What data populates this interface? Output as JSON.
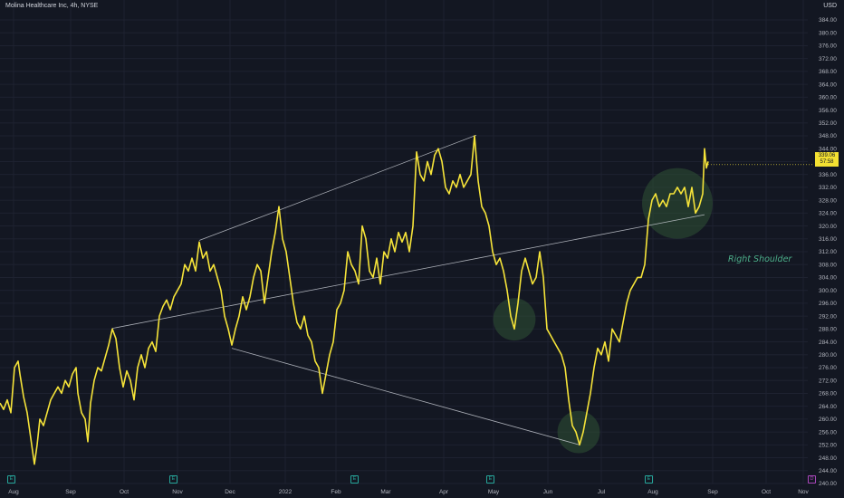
{
  "header": {
    "title": "Molina Healthcare Inc, 4h, NYSE",
    "currency": "USD"
  },
  "price_label": {
    "price": "339.06",
    "countdown": "57:58"
  },
  "annotation": "Right Shoulder",
  "colors": {
    "background": "#131722",
    "price_line": "#f5e339",
    "trendline": "#d1d4dc",
    "highlight_circle": "#2f5234",
    "annotation_text": "#4caf8a"
  },
  "event_markers": [
    {
      "label": "E",
      "x_date": "2021-07-28",
      "color": "#26a69a"
    },
    {
      "label": "E",
      "x_date": "2021-10-27",
      "color": "#26a69a"
    },
    {
      "label": "E",
      "x_date": "2022-02-08",
      "color": "#26a69a"
    },
    {
      "label": "E",
      "x_date": "2022-04-27",
      "color": "#26a69a"
    },
    {
      "label": "E",
      "x_date": "2022-07-27",
      "color": "#26a69a"
    },
    {
      "label": "D",
      "x_date": "2022-10-31",
      "color": "#ab47bc"
    }
  ],
  "chart_data": {
    "type": "line",
    "title": "Molina Healthcare Inc, 4h, NYSE",
    "y_unit": "USD",
    "ylim": [
      240,
      384
    ],
    "y_ticks": [
      "384.00",
      "380.00",
      "376.00",
      "372.00",
      "368.00",
      "364.00",
      "360.00",
      "356.00",
      "352.00",
      "348.00",
      "344.00",
      "340.00",
      "336.00",
      "332.00",
      "328.00",
      "324.00",
      "320.00",
      "316.00",
      "312.00",
      "308.00",
      "304.00",
      "300.00",
      "296.00",
      "292.00",
      "288.00",
      "284.00",
      "280.00",
      "276.00",
      "272.00",
      "268.00",
      "264.00",
      "260.00",
      "256.00",
      "252.00",
      "248.00",
      "244.00",
      "240.00"
    ],
    "x_ticks": [
      "Aug",
      "Sep",
      "Oct",
      "Nov",
      "Dec",
      "2022",
      "Feb",
      "Mar",
      "Apr",
      "May",
      "Jun",
      "Jul",
      "Aug",
      "Sep",
      "Oct",
      "Nov"
    ],
    "grid": true,
    "series": [
      {
        "values": [
          [
            0,
            265
          ],
          [
            4,
            263
          ],
          [
            8,
            266
          ],
          [
            12,
            262
          ],
          [
            16,
            276
          ],
          [
            20,
            278
          ],
          [
            22,
            274
          ],
          [
            26,
            267
          ],
          [
            30,
            262
          ],
          [
            34,
            254
          ],
          [
            38,
            246
          ],
          [
            41,
            252
          ],
          [
            44,
            260
          ],
          [
            48,
            258
          ],
          [
            52,
            262
          ],
          [
            56,
            266
          ],
          [
            60,
            268
          ],
          [
            64,
            270
          ],
          [
            68,
            268
          ],
          [
            72,
            272
          ],
          [
            76,
            270
          ],
          [
            80,
            274
          ],
          [
            84,
            276
          ],
          [
            86,
            268
          ],
          [
            90,
            262
          ],
          [
            94,
            260
          ],
          [
            97,
            253
          ],
          [
            100,
            265
          ],
          [
            104,
            272
          ],
          [
            108,
            276
          ],
          [
            112,
            275
          ],
          [
            116,
            279
          ],
          [
            120,
            283
          ],
          [
            124,
            288
          ],
          [
            128,
            285
          ],
          [
            132,
            276
          ],
          [
            136,
            270
          ],
          [
            140,
            275
          ],
          [
            144,
            272
          ],
          [
            148,
            266
          ],
          [
            152,
            276
          ],
          [
            156,
            280
          ],
          [
            160,
            276
          ],
          [
            164,
            282
          ],
          [
            168,
            284
          ],
          [
            172,
            281
          ],
          [
            176,
            292
          ],
          [
            180,
            295
          ],
          [
            184,
            297
          ],
          [
            188,
            294
          ],
          [
            192,
            298
          ],
          [
            196,
            300
          ],
          [
            200,
            302
          ],
          [
            204,
            308
          ],
          [
            208,
            306
          ],
          [
            212,
            310
          ],
          [
            216,
            306
          ],
          [
            220,
            315
          ],
          [
            224,
            310
          ],
          [
            228,
            312
          ],
          [
            232,
            306
          ],
          [
            236,
            308
          ],
          [
            240,
            304
          ],
          [
            244,
            300
          ],
          [
            248,
            292
          ],
          [
            252,
            288
          ],
          [
            256,
            283
          ],
          [
            260,
            288
          ],
          [
            264,
            292
          ],
          [
            268,
            298
          ],
          [
            272,
            294
          ],
          [
            276,
            298
          ],
          [
            280,
            304
          ],
          [
            284,
            308
          ],
          [
            288,
            306
          ],
          [
            292,
            296
          ],
          [
            296,
            304
          ],
          [
            300,
            312
          ],
          [
            304,
            318
          ],
          [
            308,
            326
          ],
          [
            312,
            316
          ],
          [
            316,
            312
          ],
          [
            320,
            304
          ],
          [
            324,
            296
          ],
          [
            328,
            290
          ],
          [
            332,
            288
          ],
          [
            336,
            292
          ],
          [
            340,
            286
          ],
          [
            344,
            284
          ],
          [
            348,
            278
          ],
          [
            352,
            276
          ],
          [
            356,
            268
          ],
          [
            360,
            274
          ],
          [
            364,
            280
          ],
          [
            368,
            284
          ],
          [
            372,
            294
          ],
          [
            376,
            296
          ],
          [
            380,
            300
          ],
          [
            384,
            312
          ],
          [
            388,
            308
          ],
          [
            392,
            306
          ],
          [
            396,
            302
          ],
          [
            400,
            320
          ],
          [
            404,
            316
          ],
          [
            408,
            306
          ],
          [
            412,
            304
          ],
          [
            416,
            310
          ],
          [
            420,
            302
          ],
          [
            424,
            312
          ],
          [
            428,
            310
          ],
          [
            432,
            316
          ],
          [
            436,
            312
          ],
          [
            440,
            318
          ],
          [
            444,
            315
          ],
          [
            448,
            318
          ],
          [
            452,
            312
          ],
          [
            456,
            320
          ],
          [
            460,
            343
          ],
          [
            464,
            336
          ],
          [
            468,
            334
          ],
          [
            472,
            340
          ],
          [
            476,
            336
          ],
          [
            480,
            342
          ],
          [
            484,
            344
          ],
          [
            488,
            340
          ],
          [
            492,
            332
          ],
          [
            496,
            330
          ],
          [
            500,
            334
          ],
          [
            504,
            332
          ],
          [
            508,
            336
          ],
          [
            512,
            332
          ],
          [
            516,
            334
          ],
          [
            520,
            336
          ],
          [
            524,
            348
          ],
          [
            528,
            334
          ],
          [
            532,
            326
          ],
          [
            536,
            324
          ],
          [
            540,
            320
          ],
          [
            544,
            312
          ],
          [
            548,
            308
          ],
          [
            552,
            310
          ],
          [
            556,
            306
          ],
          [
            560,
            300
          ],
          [
            564,
            292
          ],
          [
            568,
            288
          ],
          [
            572,
            296
          ],
          [
            576,
            306
          ],
          [
            580,
            310
          ],
          [
            584,
            306
          ],
          [
            588,
            302
          ],
          [
            592,
            304
          ],
          [
            596,
            312
          ],
          [
            600,
            304
          ],
          [
            604,
            288
          ],
          [
            608,
            286
          ],
          [
            612,
            284
          ],
          [
            616,
            282
          ],
          [
            620,
            280
          ],
          [
            624,
            276
          ],
          [
            628,
            266
          ],
          [
            632,
            258
          ],
          [
            636,
            256
          ],
          [
            640,
            252
          ],
          [
            644,
            256
          ],
          [
            648,
            262
          ],
          [
            652,
            268
          ],
          [
            656,
            276
          ],
          [
            660,
            282
          ],
          [
            664,
            280
          ],
          [
            668,
            284
          ],
          [
            672,
            278
          ],
          [
            676,
            288
          ],
          [
            680,
            286
          ],
          [
            684,
            284
          ],
          [
            688,
            290
          ],
          [
            692,
            296
          ],
          [
            696,
            300
          ],
          [
            700,
            302
          ],
          [
            704,
            304
          ],
          [
            708,
            304
          ],
          [
            712,
            308
          ],
          [
            716,
            322
          ],
          [
            720,
            328
          ],
          [
            724,
            330
          ],
          [
            728,
            326
          ],
          [
            732,
            328
          ],
          [
            736,
            326
          ],
          [
            740,
            330
          ],
          [
            744,
            330
          ],
          [
            748,
            332
          ],
          [
            752,
            330
          ],
          [
            756,
            332
          ],
          [
            760,
            326
          ],
          [
            764,
            332
          ],
          [
            768,
            324
          ],
          [
            772,
            326
          ],
          [
            776,
            330
          ],
          [
            778,
            344
          ],
          [
            780,
            338
          ],
          [
            782,
            340
          ]
        ]
      }
    ],
    "trendlines": [
      {
        "name": "upper-channel",
        "from": [
          220,
          315.5
        ],
        "to": [
          526,
          348.2
        ]
      },
      {
        "name": "neckline",
        "from": [
          124,
          288.2
        ],
        "to": [
          778,
          323.5
        ]
      },
      {
        "name": "lower-channel",
        "from": [
          256,
          282
        ],
        "to": [
          640,
          252
        ]
      }
    ],
    "highlight_circles": [
      {
        "name": "left-shoulder",
        "cx": 568,
        "cy": 291,
        "r": 3
      },
      {
        "name": "head",
        "cx": 639,
        "cy": 256,
        "r": 3
      },
      {
        "name": "right-shoulder",
        "cx": 748,
        "cy": 327,
        "r": 5
      }
    ]
  }
}
